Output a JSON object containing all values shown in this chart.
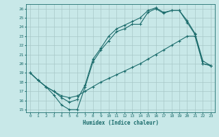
{
  "xlabel": "Humidex (Indice chaleur)",
  "bg_color": "#c8e8e8",
  "grid_color": "#a8c8c8",
  "line_color": "#1a6b6b",
  "xlim": [
    -0.5,
    23.5
  ],
  "ylim": [
    14.7,
    26.5
  ],
  "xticks": [
    0,
    1,
    2,
    3,
    4,
    5,
    6,
    7,
    8,
    9,
    10,
    11,
    12,
    13,
    14,
    15,
    16,
    17,
    18,
    19,
    20,
    21,
    22,
    23
  ],
  "yticks": [
    15,
    16,
    17,
    18,
    19,
    20,
    21,
    22,
    23,
    24,
    25,
    26
  ],
  "line1_x": [
    0,
    1,
    2,
    3,
    4,
    5,
    6,
    7,
    8,
    9,
    10,
    11,
    12,
    13,
    14,
    15,
    16,
    17,
    18,
    19,
    20,
    21,
    22,
    23
  ],
  "line1_y": [
    19,
    18.2,
    17.5,
    16.6,
    15.5,
    15.0,
    15.0,
    17.5,
    20.2,
    21.5,
    22.5,
    23.5,
    23.8,
    24.3,
    24.3,
    25.6,
    26.0,
    25.5,
    25.8,
    25.8,
    24.5,
    23.2,
    20.0,
    19.8
  ],
  "line2_x": [
    0,
    1,
    2,
    3,
    4,
    5,
    6,
    7,
    8,
    9,
    10,
    11,
    12,
    13,
    14,
    15,
    16,
    17,
    18,
    19,
    20,
    21,
    22,
    23
  ],
  "line2_y": [
    19,
    18.2,
    17.5,
    17.0,
    16.3,
    15.8,
    16.1,
    17.7,
    20.5,
    21.7,
    23.0,
    23.8,
    24.2,
    24.6,
    25.0,
    25.8,
    26.1,
    25.6,
    25.8,
    25.8,
    24.7,
    23.3,
    20.3,
    19.8
  ],
  "line3_x": [
    0,
    1,
    2,
    3,
    4,
    5,
    6,
    7,
    8,
    9,
    10,
    11,
    12,
    13,
    14,
    15,
    16,
    17,
    18,
    19,
    20,
    21,
    22,
    23
  ],
  "line3_y": [
    19,
    18.2,
    17.5,
    17.0,
    16.5,
    16.3,
    16.5,
    17.0,
    17.5,
    18.0,
    18.4,
    18.8,
    19.2,
    19.6,
    20.0,
    20.5,
    21.0,
    21.5,
    22.0,
    22.5,
    23.0,
    23.0,
    20.0,
    19.8
  ]
}
